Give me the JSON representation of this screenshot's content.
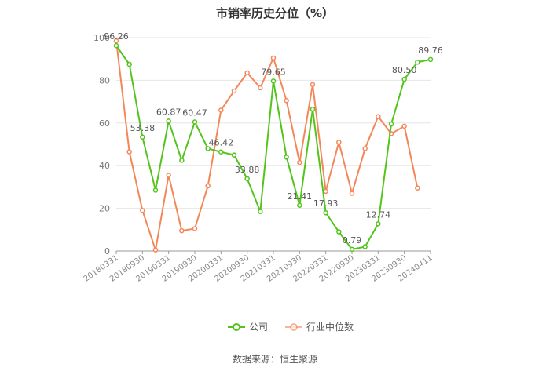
{
  "chart_data": {
    "type": "line",
    "title": "市销率历史分位（%）",
    "source": "数据来源：恒生聚源",
    "ylim": [
      0,
      100
    ],
    "y_ticks": [
      0,
      20,
      40,
      60,
      80,
      100
    ],
    "grid": "horizontal",
    "legend_position": "bottom",
    "x_tick_labels": [
      "20180331",
      "20180930",
      "20190331",
      "20190930",
      "20200331",
      "20200930",
      "20210331",
      "20210930",
      "20220331",
      "20220930",
      "20230331",
      "20230930",
      "20240411"
    ],
    "x": [
      "20180331",
      "20180630",
      "20180930",
      "20181231",
      "20190331",
      "20190630",
      "20190930",
      "20191231",
      "20200331",
      "20200630",
      "20200930",
      "20201231",
      "20210331",
      "20210630",
      "20210930",
      "20211231",
      "20220331",
      "20220630",
      "20220930",
      "20221231",
      "20230331",
      "20230630",
      "20230930",
      "20231231",
      "20240411"
    ],
    "series": [
      {
        "name": "公司",
        "color": "#52c41a",
        "values": [
          96.26,
          87.5,
          53.38,
          28.5,
          60.87,
          42.5,
          60.47,
          48.0,
          46.42,
          45.0,
          33.88,
          18.5,
          79.65,
          44.0,
          21.41,
          66.5,
          17.93,
          9.0,
          0.79,
          2.0,
          12.74,
          59.5,
          80.5,
          88.5,
          89.76
        ],
        "labels": {
          "0": "96.26",
          "2": "53.38",
          "4": "60.87",
          "6": "60.47",
          "8": "46.42",
          "10": "33.88",
          "12": "79.65",
          "14": "21.41",
          "16": "17.93",
          "18": "0.79",
          "20": "12.74",
          "22": "80.50",
          "24": "89.76"
        }
      },
      {
        "name": "行业中位数",
        "color": "#f4875a",
        "values": [
          98.5,
          46.5,
          19.0,
          0.5,
          35.5,
          9.5,
          10.5,
          30.5,
          66.0,
          75.0,
          83.5,
          76.5,
          90.5,
          70.5,
          41.5,
          78.0,
          28.0,
          51.0,
          27.0,
          48.0,
          63.0,
          55.0,
          58.5,
          29.5,
          null
        ]
      }
    ]
  }
}
